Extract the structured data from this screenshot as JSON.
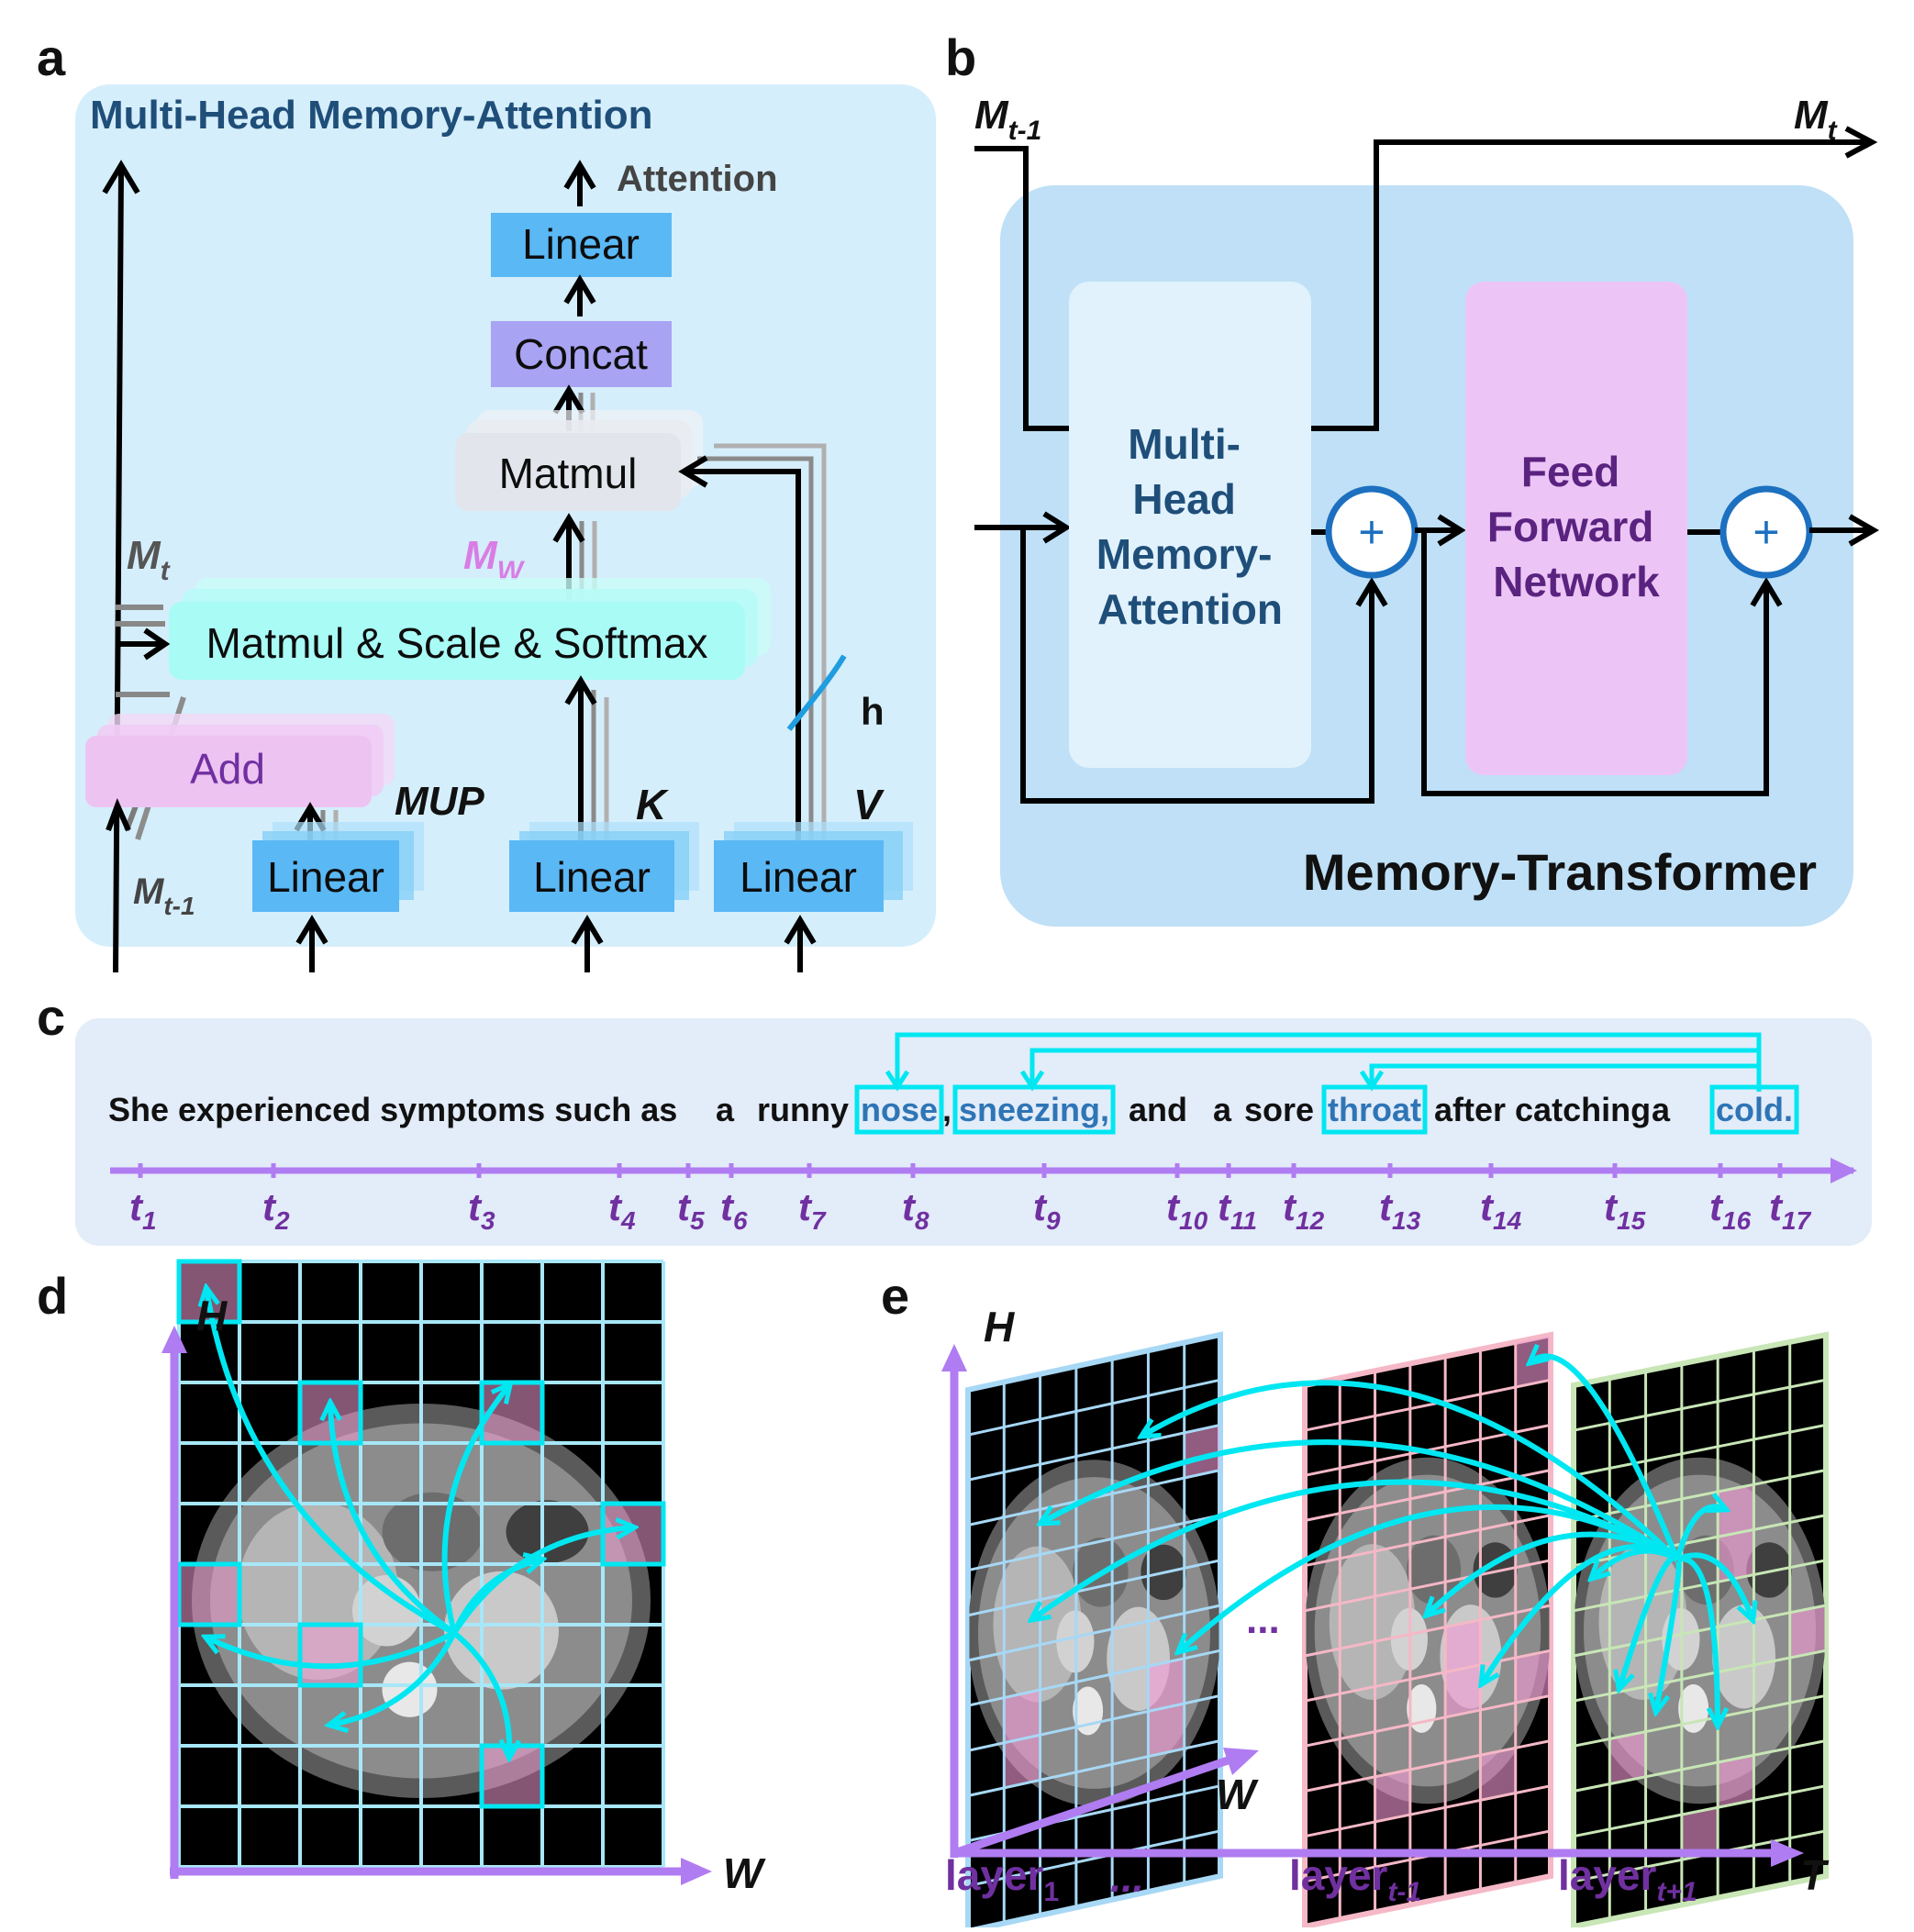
{
  "panels": {
    "a": {
      "letter": "a",
      "title": "Multi-Head Memory-Attention",
      "attention_label": "Attention",
      "linear_top": "Linear",
      "concat": "Concat",
      "matmul": "Matmul",
      "mw_main": "M",
      "mw_sub": "W",
      "mt_main": "M",
      "mt_sub": "t",
      "softmax": "Matmul & Scale & Softmax",
      "add": "Add",
      "mup": "MUP",
      "k": "K",
      "v": "V",
      "h": "h",
      "mt1_main": "M",
      "mt1_sub": "t-1",
      "linear_mup": "Linear",
      "linear_k": "Linear",
      "linear_v": "Linear"
    },
    "b": {
      "letter": "b",
      "mt1_main": "M",
      "mt1_sub": "t-1",
      "mt_main": "M",
      "mt_sub": "t",
      "mhma_lines": [
        "Multi-",
        "Head",
        "Memory-",
        "Attention"
      ],
      "ffn_lines": [
        "Feed",
        "Forward",
        "Network"
      ],
      "plus": "+",
      "caption": "Memory-Transformer"
    },
    "c": {
      "letter": "c",
      "words": [
        {
          "text": "She experienced symptoms such as",
          "highlight": false
        },
        {
          "text": "a",
          "highlight": false
        },
        {
          "text": "runny",
          "highlight": false
        },
        {
          "text": "nose",
          "highlight": true
        },
        {
          "text": ",",
          "highlight": false
        },
        {
          "text": "sneezing,",
          "highlight": true
        },
        {
          "text": "and",
          "highlight": false
        },
        {
          "text": "a",
          "highlight": false
        },
        {
          "text": "sore",
          "highlight": false
        },
        {
          "text": "throat",
          "highlight": true
        },
        {
          "text": "after catching",
          "highlight": false
        },
        {
          "text": "a",
          "highlight": false
        },
        {
          "text": "cold.",
          "highlight": true
        }
      ],
      "time_main": "t",
      "time_subs": [
        "1",
        "2",
        "3",
        "4",
        "5",
        "6",
        "7",
        "8",
        "9",
        "10",
        "11",
        "12",
        "13",
        "14",
        "15",
        "16",
        "17"
      ]
    },
    "d": {
      "letter": "d",
      "axis_h": "H",
      "axis_w": "W"
    },
    "e": {
      "letter": "e",
      "axis_h": "H",
      "axis_w": "W",
      "axis_t": "T",
      "ellipsis": "...",
      "layers": [
        {
          "main": "layer",
          "sub": "1"
        },
        {
          "main": "layer",
          "sub": "t-1"
        },
        {
          "main": "layer",
          "sub": "t+1"
        }
      ],
      "ellipsis_bottom": "..."
    }
  },
  "colors": {
    "panel_bg_a": "#d5eefb",
    "panel_bg_b": "#bfe0f6",
    "linear_blue": "#5ab8f5",
    "concat_purple": "#a9a3f3",
    "matmul_gray": "#e4e8ee",
    "softmax_cyan": "#a9fbf6",
    "add_pink": "#edc3f2",
    "ffn_pink": "#ecc5f6",
    "mhma_light": "#e1f2fc",
    "title_navy": "#1f4e79",
    "purple_text": "#7030a0",
    "cyan": "#00e7f2",
    "axis_purple": "#b07cf2",
    "mw_magenta": "#d97de5"
  }
}
